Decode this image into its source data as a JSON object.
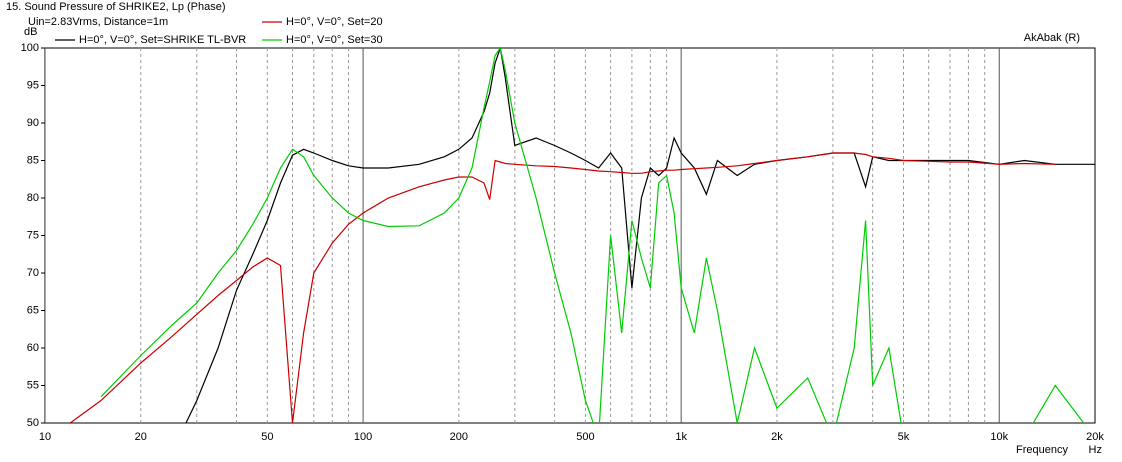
{
  "chart_data": {
    "type": "line",
    "title": "15. Sound Pressure of SHRIKE2, Lp (Phase)",
    "subtitle": "Uin=2.83Vrms, Distance=1m",
    "y_label": "dB",
    "x_label": "Frequency",
    "x_unit": "Hz",
    "annotation": "AkAbak (R)",
    "x": [
      10,
      12,
      15,
      20,
      25,
      30,
      35,
      40,
      45,
      50,
      55,
      60,
      65,
      70,
      80,
      90,
      100,
      120,
      150,
      180,
      200,
      220,
      240,
      250,
      260,
      270,
      280,
      300,
      350,
      400,
      450,
      500,
      550,
      600,
      650,
      700,
      750,
      800,
      850,
      900,
      950,
      1000,
      1100,
      1200,
      1300,
      1500,
      1700,
      2000,
      2500,
      3000,
      3500,
      3800,
      4000,
      4500,
      5000,
      6000,
      7000,
      8000,
      10000,
      12000,
      15000,
      20000
    ],
    "series": [
      {
        "name": "H=0°, V=0°, Set=SHRIKE TL-BVR",
        "color": "#000000",
        "values": [
          null,
          null,
          null,
          null,
          46,
          53,
          60,
          67.7,
          72.5,
          77,
          82,
          85.7,
          86.5,
          86,
          85,
          84.3,
          84,
          84,
          84.5,
          85.5,
          86.5,
          88,
          91.5,
          94,
          98,
          100,
          96,
          87,
          88,
          87,
          86,
          85,
          84,
          86,
          84,
          68,
          80,
          84,
          83,
          84,
          88,
          86,
          84,
          80.5,
          85,
          83,
          84.5,
          85,
          85.5,
          86,
          86,
          81.5,
          85.5,
          85,
          85,
          85,
          85,
          85,
          84.5,
          85,
          84.5,
          84.5
        ]
      },
      {
        "name": "H=0°, V=0°, Set=20",
        "color": "#cc0000",
        "values": [
          null,
          50,
          53,
          58,
          61.5,
          64.5,
          67,
          69,
          70.8,
          72,
          71,
          50,
          62,
          70,
          74,
          76.5,
          78,
          80,
          81.5,
          82.4,
          82.8,
          82.8,
          82,
          79.8,
          85,
          84.8,
          84.6,
          84.5,
          84.3,
          84.2,
          84,
          83.8,
          83.6,
          83.5,
          83.4,
          83.3,
          83.3,
          83.5,
          83.6,
          83.7,
          83.7,
          83.8,
          83.9,
          84,
          84.1,
          84.3,
          84.6,
          85,
          85.5,
          86,
          86,
          85.8,
          85.5,
          85.3,
          85,
          84.9,
          84.8,
          84.8,
          84.5,
          84.6,
          84.5,
          null
        ]
      },
      {
        "name": "H=0°, V=0°, Set=30",
        "color": "#00cc00",
        "values": [
          null,
          null,
          53.5,
          59,
          63,
          66,
          70,
          73,
          76.5,
          80,
          84,
          86.5,
          85.5,
          83,
          80,
          78,
          77,
          76.2,
          76.3,
          78,
          80,
          84,
          92,
          95.5,
          99,
          100,
          97,
          90,
          80,
          70,
          62,
          53,
          48,
          75,
          62,
          77,
          72,
          68,
          82,
          83,
          78,
          68,
          62,
          72,
          65,
          50,
          60,
          52,
          56,
          48,
          60,
          77,
          55,
          60,
          48,
          48,
          50,
          48,
          48,
          48,
          55,
          48
        ]
      }
    ],
    "xlim": [
      10,
      20000
    ],
    "ylim": [
      50,
      100
    ],
    "log_x": true,
    "grid": "x",
    "xticks": [
      10,
      20,
      50,
      100,
      200,
      500,
      {
        "value": 1000,
        "label": "1k"
      },
      {
        "value": 2000,
        "label": "2k"
      },
      {
        "value": 5000,
        "label": "5k"
      },
      {
        "value": 10000,
        "label": "10k"
      },
      {
        "value": 20000,
        "label": "20k"
      }
    ],
    "yticks": [
      50,
      55,
      60,
      65,
      70,
      75,
      80,
      85,
      90,
      95,
      100
    ]
  }
}
